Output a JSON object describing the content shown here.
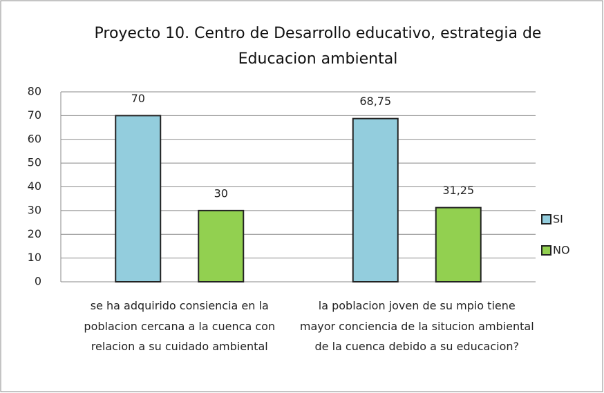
{
  "chart_data": {
    "type": "bar",
    "title": "Proyecto 10. Centro de Desarrollo educativo, estrategia de Educacion ambiental",
    "categories": [
      "se ha adquirido consiencia en la poblacion cercana a la cuenca con relacion a su cuidado ambiental",
      "la poblacion joven de su mpio tiene mayor conciencia de la situcion ambiental de la cuenca debido a su educacion?"
    ],
    "series": [
      {
        "name": "SI",
        "color": "#93cddd",
        "values": [
          70,
          68.75
        ],
        "value_labels": [
          "70",
          "68,75"
        ]
      },
      {
        "name": "NO",
        "color": "#92d050",
        "values": [
          30,
          31.25
        ],
        "value_labels": [
          "30",
          "31,25"
        ]
      }
    ],
    "ylim": [
      0,
      80
    ],
    "yticks": [
      0,
      10,
      20,
      30,
      40,
      50,
      60,
      70,
      80
    ],
    "grid": true,
    "legend": "right"
  }
}
